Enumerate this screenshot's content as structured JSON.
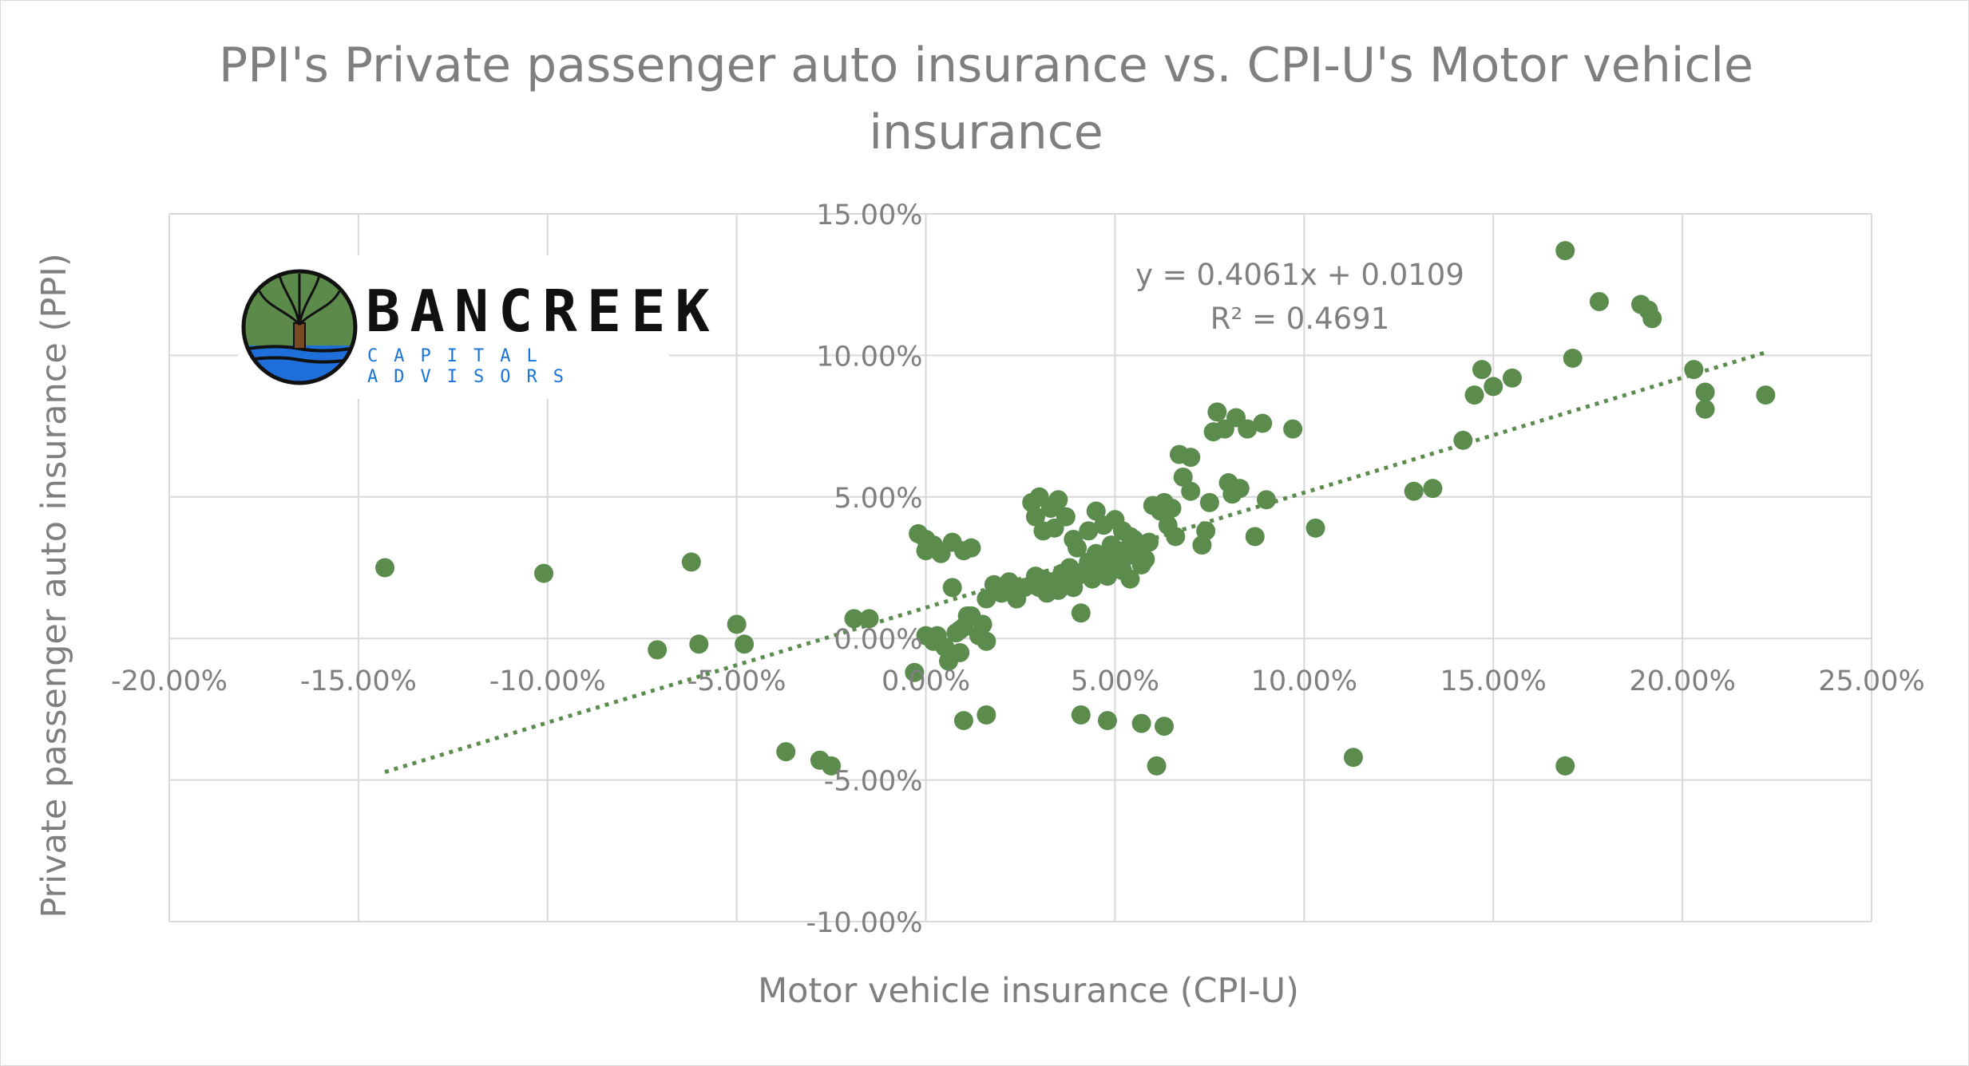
{
  "chart_data": {
    "type": "scatter",
    "title": "PPI's Private passenger auto insurance vs. CPI-U's Motor vehicle insurance",
    "xlabel": "Motor vehicle insurance (CPI-U)",
    "ylabel": "Private passenger auto insurance (PPI)",
    "xlim": [
      -0.2,
      0.25
    ],
    "ylim": [
      -0.1,
      0.15
    ],
    "x_ticks": [
      "-20.00%",
      "-15.00%",
      "-10.00%",
      "-5.00%",
      "0.00%",
      "5.00%",
      "10.00%",
      "15.00%",
      "20.00%",
      "25.00%"
    ],
    "y_ticks": [
      "15.00%",
      "10.00%",
      "5.00%",
      "0.00%",
      "-5.00%",
      "-10.00%"
    ],
    "grid": true,
    "point_color": "#5b8c4e",
    "trendline": {
      "slope": 0.4061,
      "intercept": 0.0109,
      "x_range": [
        -0.143,
        0.222
      ],
      "equation_label": "y = 0.4061x + 0.0109",
      "r2_label": "R² = 0.4691",
      "style": "dotted",
      "color": "#5b8c4e"
    },
    "points": [
      [
        -0.143,
        0.025
      ],
      [
        -0.101,
        0.023
      ],
      [
        -0.071,
        -0.004
      ],
      [
        -0.062,
        0.027
      ],
      [
        -0.06,
        -0.002
      ],
      [
        -0.05,
        0.005
      ],
      [
        -0.048,
        -0.002
      ],
      [
        -0.037,
        -0.04
      ],
      [
        -0.028,
        -0.043
      ],
      [
        -0.025,
        -0.045
      ],
      [
        -0.019,
        0.007
      ],
      [
        -0.015,
        0.007
      ],
      [
        -0.003,
        -0.012
      ],
      [
        -0.002,
        0.037
      ],
      [
        0.0,
        0.035
      ],
      [
        0.0,
        0.031
      ],
      [
        0.002,
        0.033
      ],
      [
        0.004,
        0.03
      ],
      [
        0.007,
        0.034
      ],
      [
        0.01,
        0.031
      ],
      [
        0.012,
        0.032
      ],
      [
        0.003,
        0.001
      ],
      [
        0.005,
        -0.003
      ],
      [
        0.006,
        -0.008
      ],
      [
        0.008,
        0.002
      ],
      [
        0.009,
        -0.005
      ],
      [
        0.01,
        0.004
      ],
      [
        0.012,
        0.008
      ],
      [
        0.014,
        0.001
      ],
      [
        0.015,
        0.005
      ],
      [
        0.016,
        0.014
      ],
      [
        0.007,
        0.018
      ],
      [
        0.018,
        0.019
      ],
      [
        0.02,
        0.016
      ],
      [
        0.022,
        0.02
      ],
      [
        0.024,
        0.014
      ],
      [
        0.026,
        0.018
      ],
      [
        0.01,
        -0.029
      ],
      [
        0.016,
        -0.027
      ],
      [
        0.016,
        -0.001
      ],
      [
        0.0,
        0.001
      ],
      [
        0.002,
        -0.001
      ],
      [
        0.011,
        0.008
      ],
      [
        0.009,
        0.003
      ],
      [
        0.028,
        0.019
      ],
      [
        0.029,
        0.022
      ],
      [
        0.03,
        0.018
      ],
      [
        0.031,
        0.021
      ],
      [
        0.032,
        0.016
      ],
      [
        0.033,
        0.02
      ],
      [
        0.035,
        0.017
      ],
      [
        0.036,
        0.023
      ],
      [
        0.037,
        0.019
      ],
      [
        0.038,
        0.025
      ],
      [
        0.039,
        0.018
      ],
      [
        0.04,
        0.022
      ],
      [
        0.041,
        0.009
      ],
      [
        0.042,
        0.024
      ],
      [
        0.043,
        0.027
      ],
      [
        0.044,
        0.021
      ],
      [
        0.045,
        0.03
      ],
      [
        0.046,
        0.025
      ],
      [
        0.047,
        0.028
      ],
      [
        0.048,
        0.022
      ],
      [
        0.049,
        0.033
      ],
      [
        0.05,
        0.027
      ],
      [
        0.051,
        0.031
      ],
      [
        0.052,
        0.024
      ],
      [
        0.053,
        0.029
      ],
      [
        0.054,
        0.021
      ],
      [
        0.055,
        0.035
      ],
      [
        0.056,
        0.03
      ],
      [
        0.057,
        0.026
      ],
      [
        0.058,
        0.028
      ],
      [
        0.059,
        0.034
      ],
      [
        0.06,
        0.047
      ],
      [
        0.062,
        0.045
      ],
      [
        0.063,
        0.048
      ],
      [
        0.064,
        0.04
      ],
      [
        0.065,
        0.046
      ],
      [
        0.066,
        0.036
      ],
      [
        0.067,
        0.065
      ],
      [
        0.068,
        0.057
      ],
      [
        0.07,
        0.064
      ],
      [
        0.07,
        0.052
      ],
      [
        0.073,
        0.033
      ],
      [
        0.074,
        0.038
      ],
      [
        0.075,
        0.048
      ],
      [
        0.076,
        0.073
      ],
      [
        0.077,
        0.08
      ],
      [
        0.079,
        0.074
      ],
      [
        0.08,
        0.055
      ],
      [
        0.081,
        0.051
      ],
      [
        0.082,
        0.078
      ],
      [
        0.083,
        0.053
      ],
      [
        0.085,
        0.074
      ],
      [
        0.087,
        0.036
      ],
      [
        0.089,
        0.076
      ],
      [
        0.09,
        0.049
      ],
      [
        0.097,
        0.074
      ],
      [
        0.103,
        0.039
      ],
      [
        0.028,
        0.048
      ],
      [
        0.029,
        0.043
      ],
      [
        0.03,
        0.05
      ],
      [
        0.031,
        0.038
      ],
      [
        0.033,
        0.046
      ],
      [
        0.034,
        0.039
      ],
      [
        0.035,
        0.049
      ],
      [
        0.037,
        0.043
      ],
      [
        0.039,
        0.035
      ],
      [
        0.04,
        0.032
      ],
      [
        0.043,
        0.038
      ],
      [
        0.045,
        0.045
      ],
      [
        0.047,
        0.04
      ],
      [
        0.05,
        0.042
      ],
      [
        0.052,
        0.038
      ],
      [
        0.054,
        0.036
      ],
      [
        0.041,
        -0.027
      ],
      [
        0.048,
        -0.029
      ],
      [
        0.057,
        -0.03
      ],
      [
        0.061,
        -0.045
      ],
      [
        0.063,
        -0.031
      ],
      [
        0.113,
        -0.042
      ],
      [
        0.129,
        0.052
      ],
      [
        0.134,
        0.053
      ],
      [
        0.142,
        0.07
      ],
      [
        0.145,
        0.086
      ],
      [
        0.147,
        0.095
      ],
      [
        0.15,
        0.089
      ],
      [
        0.155,
        0.092
      ],
      [
        0.169,
        0.137
      ],
      [
        0.171,
        0.099
      ],
      [
        0.169,
        -0.045
      ],
      [
        0.178,
        0.119
      ],
      [
        0.189,
        0.118
      ],
      [
        0.191,
        0.116
      ],
      [
        0.192,
        0.113
      ],
      [
        0.203,
        0.095
      ],
      [
        0.206,
        0.087
      ],
      [
        0.206,
        0.081
      ],
      [
        0.222,
        0.086
      ]
    ]
  },
  "logo": {
    "name": "BANCREEK",
    "subtitle": "CAPITAL ADVISORS"
  }
}
